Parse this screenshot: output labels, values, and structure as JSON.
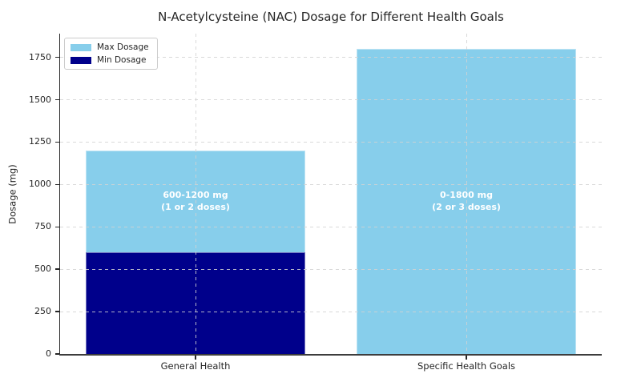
{
  "chart_data": {
    "type": "bar",
    "title": "N-Acetylcysteine (NAC) Dosage for Different Health Goals",
    "xlabel": "",
    "ylabel": "Dosage (mg)",
    "categories": [
      "General Health",
      "Specific Health Goals"
    ],
    "series": [
      {
        "name": "Max Dosage",
        "color": "#87CEEB",
        "values": [
          1200,
          1800
        ]
      },
      {
        "name": "Min Dosage",
        "color": "#00008B",
        "values": [
          600,
          0
        ]
      }
    ],
    "bar_style": "overlay",
    "bar_annotations": [
      {
        "category_index": 0,
        "lines": [
          "600-1200 mg",
          "(1 or 2 doses)"
        ],
        "y_center": 900,
        "color": "#ffffff"
      },
      {
        "category_index": 1,
        "lines": [
          "0-1800 mg",
          "(2 or 3 doses)"
        ],
        "y_center": 900,
        "color": "#ffffff"
      }
    ],
    "ylim": [
      0,
      1890
    ],
    "yticks": [
      0,
      250,
      500,
      750,
      1000,
      1250,
      1500,
      1750
    ],
    "grid": "dashed",
    "grid_color": "#d2d2d2",
    "legend_position": "upper-left"
  }
}
